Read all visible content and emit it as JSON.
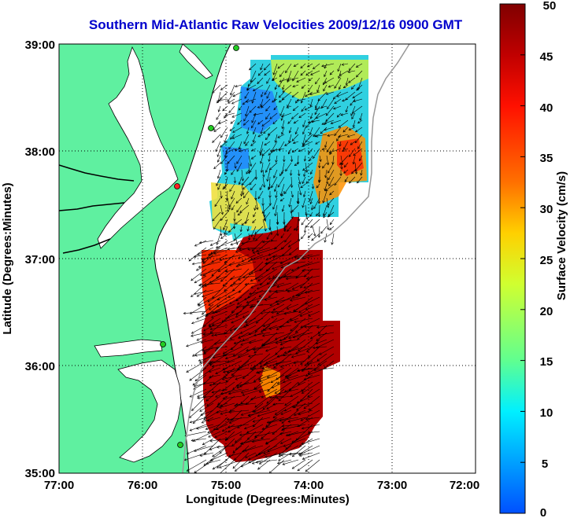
{
  "title": "Southern Mid-Atlantic Raw Velocities 2009/12/16 0900 GMT",
  "xaxis": {
    "label": "Longitude (Degrees:Minutes)",
    "ticks": [
      "77:00",
      "76:00",
      "75:00",
      "74:00",
      "73:00",
      "72:00"
    ]
  },
  "yaxis": {
    "label": "Latitude (Degrees:Minutes)",
    "ticks": [
      "39:00",
      "38:00",
      "37:00",
      "36:00",
      "35:00"
    ]
  },
  "colorbar": {
    "label": "Surface Velocity (cm/s)",
    "ticks": [
      "50",
      "45",
      "40",
      "35",
      "30",
      "25",
      "20",
      "15",
      "10",
      "5",
      "0"
    ],
    "min": 0,
    "max": 50,
    "colors": [
      "#0050ff",
      "#00a0ff",
      "#00f0ff",
      "#60ff90",
      "#d0ff30",
      "#ffd000",
      "#ff7000",
      "#ff1000",
      "#c00000",
      "#800000"
    ]
  },
  "map": {
    "extent": {
      "lon": [
        -77,
        -72
      ],
      "lat": [
        35,
        39
      ]
    },
    "land_color": "#5ff0a0",
    "station_color": "#22cc22",
    "highlight_station_color": "#ff2222"
  }
}
